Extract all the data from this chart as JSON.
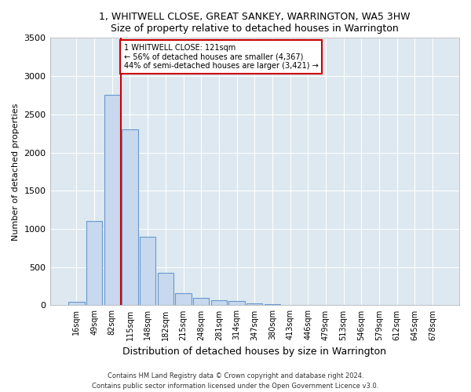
{
  "title": "1, WHITWELL CLOSE, GREAT SANKEY, WARRINGTON, WA5 3HW",
  "subtitle": "Size of property relative to detached houses in Warrington",
  "xlabel": "Distribution of detached houses by size in Warrington",
  "ylabel": "Number of detached properties",
  "bar_labels": [
    "16sqm",
    "49sqm",
    "82sqm",
    "115sqm",
    "148sqm",
    "182sqm",
    "215sqm",
    "248sqm",
    "281sqm",
    "314sqm",
    "347sqm",
    "380sqm",
    "413sqm",
    "446sqm",
    "479sqm",
    "513sqm",
    "546sqm",
    "579sqm",
    "612sqm",
    "645sqm",
    "678sqm"
  ],
  "bar_values": [
    50,
    1100,
    2750,
    2300,
    900,
    430,
    160,
    100,
    65,
    55,
    30,
    15,
    8,
    3,
    2,
    1,
    1,
    0,
    0,
    0,
    0
  ],
  "bar_color": "#c8d8ee",
  "bar_edge_color": "#6699cc",
  "red_line_color": "#cc0000",
  "annotation_text_line1": "1 WHITWELL CLOSE: 121sqm",
  "annotation_text_line2": "← 56% of detached houses are smaller (4,367)",
  "annotation_text_line3": "44% of semi-detached houses are larger (3,421) →",
  "annotation_box_color": "#ffffff",
  "annotation_box_edge_color": "#cc0000",
  "ylim": [
    0,
    3500
  ],
  "yticks": [
    0,
    500,
    1000,
    1500,
    2000,
    2500,
    3000,
    3500
  ],
  "background_color": "#dde8f0",
  "grid_color": "#ffffff",
  "footer_line1": "Contains HM Land Registry data © Crown copyright and database right 2024.",
  "footer_line2": "Contains public sector information licensed under the Open Government Licence v3.0."
}
